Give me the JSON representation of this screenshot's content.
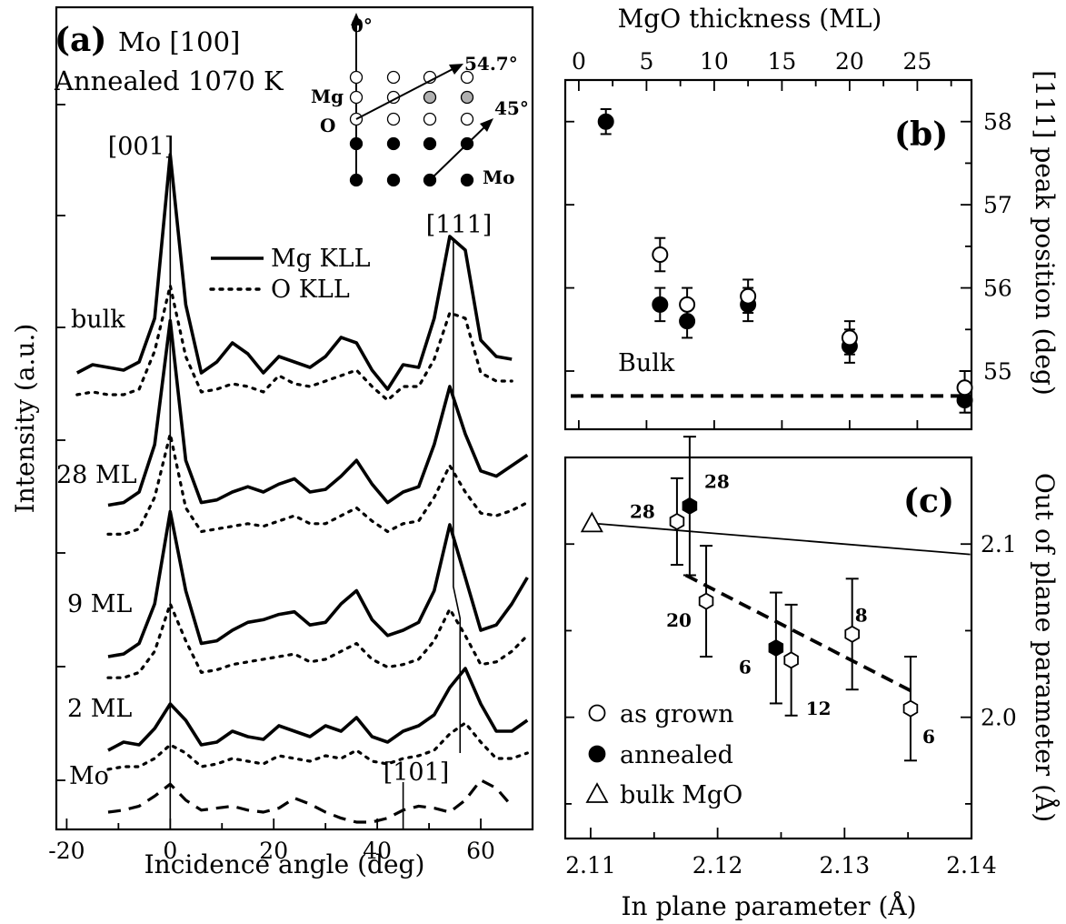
{
  "chart_data": [
    {
      "panel": "(a)",
      "type": "line",
      "title_lines": [
        "Mo [100]",
        "Annealed 1070 K"
      ],
      "xlabel": "Incidence angle (deg)",
      "ylabel": "Intensity (a.u.)",
      "xlim": [
        -22,
        70
      ],
      "xticks": [
        "-20",
        "0",
        "20",
        "40",
        "60"
      ],
      "xtick_values": [
        -20,
        0,
        20,
        40,
        60
      ],
      "legend": [
        {
          "name": "Mg KLL",
          "style": "solid"
        },
        {
          "name": "O KLL",
          "style": "dotted"
        }
      ],
      "legend_placement": "center",
      "peak_labels": [
        "[001]",
        "[111]",
        "[101]"
      ],
      "peak_positions": [
        0,
        54.7,
        45
      ],
      "curve_labels": [
        "bulk",
        "28 ML",
        "9 ML",
        "2 ML",
        "Mo"
      ],
      "inset": {
        "angle_labels": [
          "0°",
          "54.7°",
          "45°"
        ],
        "layer_labels": [
          "Mg",
          "O",
          "Mo"
        ]
      },
      "series": [
        {
          "name": "bulk Mg KLL",
          "style": "solid",
          "x": [
            -18,
            -15,
            -12,
            -9,
            -6,
            -3,
            0,
            3,
            6,
            9,
            12,
            15,
            18,
            21,
            24,
            27,
            30,
            33,
            36,
            39,
            42,
            45,
            48,
            51,
            54,
            57,
            60,
            63,
            66
          ],
          "y": [
            0.2,
            0.23,
            0.22,
            0.21,
            0.24,
            0.4,
            1.0,
            0.45,
            0.2,
            0.24,
            0.31,
            0.27,
            0.2,
            0.26,
            0.24,
            0.22,
            0.26,
            0.33,
            0.31,
            0.21,
            0.14,
            0.23,
            0.22,
            0.4,
            0.7,
            0.65,
            0.32,
            0.26,
            0.25
          ]
        },
        {
          "name": "bulk O KLL",
          "style": "dotted",
          "x": [
            -18,
            -15,
            -12,
            -9,
            -6,
            -3,
            0,
            3,
            6,
            9,
            12,
            15,
            18,
            21,
            24,
            27,
            30,
            33,
            36,
            39,
            42,
            45,
            48,
            51,
            54,
            57,
            60,
            63,
            66
          ],
          "y": [
            0.12,
            0.13,
            0.12,
            0.12,
            0.14,
            0.28,
            0.52,
            0.26,
            0.13,
            0.14,
            0.16,
            0.15,
            0.13,
            0.19,
            0.16,
            0.15,
            0.17,
            0.19,
            0.21,
            0.15,
            0.1,
            0.15,
            0.15,
            0.25,
            0.42,
            0.4,
            0.2,
            0.17,
            0.17
          ]
        },
        {
          "name": "28 ML Mg KLL",
          "style": "solid",
          "x": [
            -12,
            -9,
            -6,
            -3,
            0,
            3,
            6,
            9,
            12,
            15,
            18,
            21,
            24,
            27,
            30,
            33,
            36,
            39,
            42,
            45,
            48,
            51,
            54,
            57,
            60,
            63,
            66,
            69
          ],
          "y": [
            0.25,
            0.26,
            0.3,
            0.48,
            0.95,
            0.42,
            0.26,
            0.27,
            0.3,
            0.32,
            0.3,
            0.33,
            0.35,
            0.3,
            0.31,
            0.36,
            0.42,
            0.33,
            0.26,
            0.3,
            0.32,
            0.48,
            0.7,
            0.52,
            0.38,
            0.36,
            0.4,
            0.44
          ]
        },
        {
          "name": "28 ML O KLL",
          "style": "dotted",
          "x": [
            -12,
            -9,
            -6,
            -3,
            0,
            3,
            6,
            9,
            12,
            15,
            18,
            21,
            24,
            27,
            30,
            33,
            36,
            39,
            42,
            45,
            48,
            51,
            54,
            57,
            60,
            63,
            66,
            69
          ],
          "y": [
            0.14,
            0.14,
            0.16,
            0.28,
            0.52,
            0.24,
            0.15,
            0.16,
            0.17,
            0.18,
            0.17,
            0.19,
            0.21,
            0.18,
            0.18,
            0.21,
            0.24,
            0.19,
            0.15,
            0.18,
            0.19,
            0.28,
            0.4,
            0.3,
            0.22,
            0.21,
            0.23,
            0.26
          ]
        },
        {
          "name": "9 ML Mg KLL",
          "style": "solid",
          "x": [
            -12,
            -9,
            -6,
            -3,
            0,
            3,
            6,
            9,
            12,
            15,
            18,
            21,
            24,
            27,
            30,
            33,
            36,
            39,
            42,
            45,
            48,
            51,
            54,
            57,
            60,
            63,
            66,
            69
          ],
          "y": [
            0.2,
            0.21,
            0.25,
            0.4,
            0.75,
            0.45,
            0.25,
            0.26,
            0.3,
            0.33,
            0.34,
            0.36,
            0.37,
            0.32,
            0.33,
            0.4,
            0.45,
            0.34,
            0.28,
            0.3,
            0.33,
            0.45,
            0.7,
            0.5,
            0.3,
            0.32,
            0.4,
            0.5
          ]
        },
        {
          "name": "9 ML O KLL",
          "style": "dotted",
          "x": [
            -12,
            -9,
            -6,
            -3,
            0,
            3,
            6,
            9,
            12,
            15,
            18,
            21,
            24,
            27,
            30,
            33,
            36,
            39,
            42,
            45,
            48,
            51,
            54,
            57,
            60,
            63,
            66,
            69
          ],
          "y": [
            0.12,
            0.12,
            0.14,
            0.22,
            0.4,
            0.26,
            0.14,
            0.15,
            0.17,
            0.18,
            0.19,
            0.2,
            0.21,
            0.18,
            0.19,
            0.22,
            0.25,
            0.19,
            0.16,
            0.17,
            0.19,
            0.26,
            0.38,
            0.28,
            0.17,
            0.18,
            0.22,
            0.28
          ]
        },
        {
          "name": "2 ML Mg KLL",
          "style": "solid",
          "x": [
            -12,
            -9,
            -6,
            -3,
            0,
            3,
            6,
            9,
            12,
            15,
            18,
            21,
            24,
            27,
            30,
            33,
            36,
            39,
            42,
            45,
            48,
            51,
            54,
            57,
            60,
            63,
            66,
            69
          ],
          "y": [
            0.15,
            0.18,
            0.17,
            0.23,
            0.32,
            0.26,
            0.17,
            0.18,
            0.22,
            0.2,
            0.19,
            0.24,
            0.22,
            0.2,
            0.24,
            0.22,
            0.27,
            0.2,
            0.18,
            0.22,
            0.24,
            0.28,
            0.38,
            0.45,
            0.32,
            0.22,
            0.22,
            0.26
          ]
        },
        {
          "name": "2 ML O KLL",
          "style": "dotted",
          "x": [
            -12,
            -9,
            -6,
            -3,
            0,
            3,
            6,
            9,
            12,
            15,
            18,
            21,
            24,
            27,
            30,
            33,
            36,
            39,
            42,
            45,
            48,
            51,
            54,
            57,
            60,
            63,
            66,
            69
          ],
          "y": [
            0.08,
            0.09,
            0.09,
            0.12,
            0.17,
            0.14,
            0.09,
            0.1,
            0.12,
            0.11,
            0.1,
            0.13,
            0.12,
            0.11,
            0.13,
            0.12,
            0.15,
            0.11,
            0.1,
            0.12,
            0.13,
            0.15,
            0.21,
            0.25,
            0.18,
            0.12,
            0.12,
            0.14
          ]
        },
        {
          "name": "Mo",
          "style": "dashed",
          "x": [
            -12,
            -9,
            -6,
            -3,
            0,
            3,
            6,
            9,
            12,
            15,
            18,
            21,
            24,
            27,
            30,
            33,
            36,
            39,
            42,
            45,
            48,
            51,
            54,
            57,
            60,
            63,
            66
          ],
          "y": [
            0.1,
            0.11,
            0.13,
            0.18,
            0.24,
            0.16,
            0.11,
            0.12,
            0.13,
            0.11,
            0.1,
            0.12,
            0.17,
            0.14,
            0.1,
            0.07,
            0.05,
            0.05,
            0.07,
            0.11,
            0.13,
            0.12,
            0.1,
            0.16,
            0.26,
            0.22,
            0.13
          ]
        }
      ]
    },
    {
      "panel": "(b)",
      "type": "scatter",
      "xlabel": "MgO thickness (ML)",
      "ylabel": "[111] peak position (deg)",
      "xlim": [
        -1,
        29
      ],
      "ylim": [
        54.3,
        58.5
      ],
      "xticks": [
        "0",
        "5",
        "10",
        "15",
        "20",
        "25"
      ],
      "xtick_values": [
        0,
        5,
        10,
        15,
        20,
        25
      ],
      "yticks": [
        "55",
        "56",
        "57",
        "58"
      ],
      "ytick_values": [
        55,
        56,
        57,
        58
      ],
      "reference_line": {
        "label": "Bulk",
        "y": 54.7
      },
      "series": [
        {
          "name": "annealed",
          "marker": "filled-circle",
          "x": [
            2,
            6,
            8,
            12.5,
            20,
            28.5
          ],
          "y": [
            58.0,
            55.8,
            55.6,
            55.8,
            55.3,
            54.65
          ],
          "yerr": [
            0.15,
            0.2,
            0.2,
            0.2,
            0.2,
            0.15
          ]
        },
        {
          "name": "as grown",
          "marker": "open-circle",
          "x": [
            6,
            8,
            12.5,
            20,
            28.5
          ],
          "y": [
            56.4,
            55.8,
            55.9,
            55.4,
            54.8
          ],
          "yerr": [
            0.2,
            0.2,
            0.2,
            0.2,
            0.2
          ]
        }
      ]
    },
    {
      "panel": "(c)",
      "type": "scatter",
      "xlabel": "In plane parameter (Å)",
      "ylabel": "Out of plane parameter (Å)",
      "xlim": [
        2.108,
        2.14
      ],
      "ylim": [
        1.93,
        2.15
      ],
      "xticks": [
        "2.11",
        "2.12",
        "2.13",
        "2.14"
      ],
      "xtick_values": [
        2.11,
        2.12,
        2.13,
        2.14
      ],
      "yticks": [
        "2.0",
        "2.1"
      ],
      "ytick_values": [
        2.0,
        2.1
      ],
      "legend": [
        {
          "name": "as grown",
          "marker": "open-circle"
        },
        {
          "name": "annealed",
          "marker": "filled-circle"
        },
        {
          "name": "bulk MgO",
          "marker": "open-triangle"
        }
      ],
      "legend_placement": "bottom-left",
      "point_labels": [
        "28",
        "28",
        "20",
        "8",
        "6",
        "12",
        "6"
      ],
      "series": [
        {
          "name": "as grown",
          "marker": "open-circle",
          "x": [
            2.1168,
            2.1191,
            2.1258,
            2.1306,
            2.1352
          ],
          "y": [
            2.113,
            2.067,
            2.033,
            2.048,
            2.005
          ],
          "yerr": [
            0.025,
            0.032,
            0.032,
            0.032,
            0.03
          ],
          "labels": [
            "28",
            "20",
            "12",
            "8",
            "6"
          ]
        },
        {
          "name": "annealed",
          "marker": "filled-circle",
          "x": [
            2.1178,
            2.1246
          ],
          "y": [
            2.122,
            2.04
          ],
          "yerr": [
            0.04,
            0.032
          ],
          "labels": [
            "28",
            "6"
          ]
        },
        {
          "name": "bulk MgO",
          "marker": "open-triangle",
          "x": [
            2.1101
          ],
          "y": [
            2.112
          ]
        }
      ],
      "lines": [
        {
          "style": "solid",
          "x": [
            2.1101,
            2.1399
          ],
          "y": [
            2.112,
            2.094
          ]
        },
        {
          "style": "dashed",
          "x": [
            2.1175,
            2.1353
          ],
          "y": [
            2.082,
            2.015
          ]
        }
      ]
    }
  ]
}
